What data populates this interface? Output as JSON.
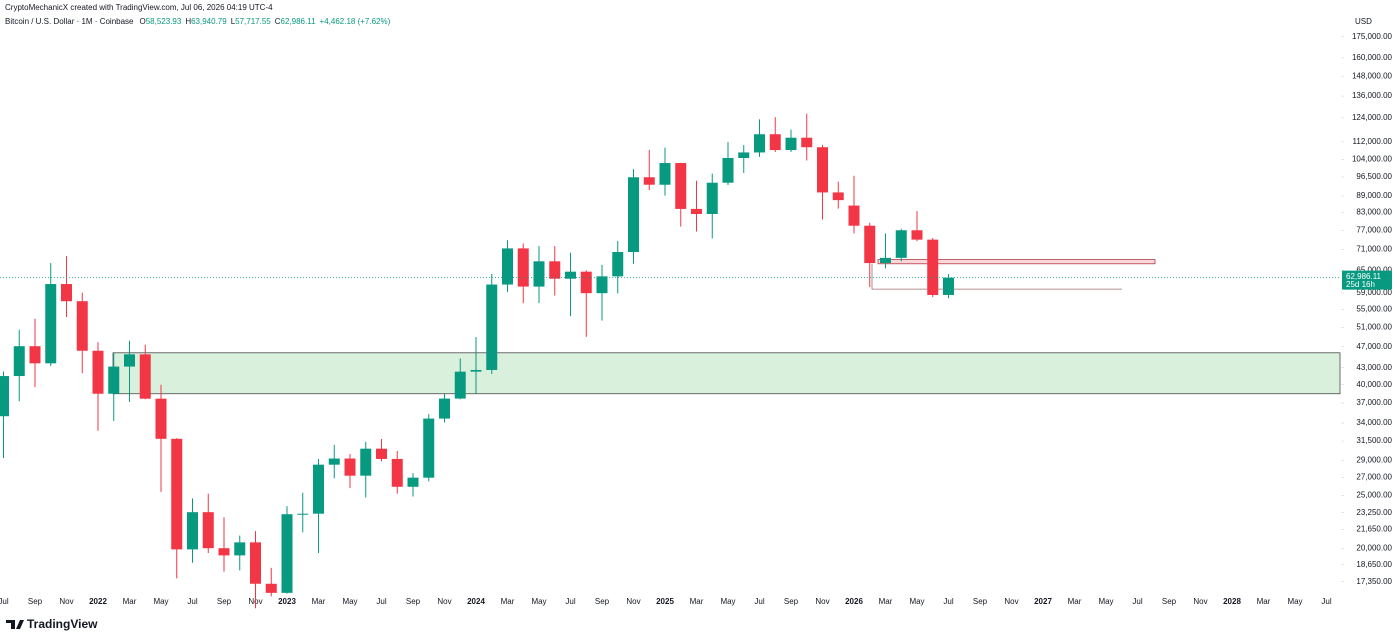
{
  "header": {
    "credit": "CryptoMechanicX created with TradingView.com, Jul 06, 2026 04:19 UTC-4",
    "symbol": "Bitcoin / U.S. Dollar · 1M · Coinbase",
    "legend": [
      {
        "key": "O",
        "value": "58,523.93"
      },
      {
        "key": "H",
        "value": "63,940.79"
      },
      {
        "key": "L",
        "value": "57,717.55"
      },
      {
        "key": "C",
        "value": "62,986.11"
      }
    ],
    "change": "+4,462.18 (+7.62%)"
  },
  "brand": "TradingView",
  "chart_data": {
    "type": "candlestick",
    "currency": "USD",
    "log_scale": true,
    "grid": false,
    "up_color": "#089981",
    "down_color": "#f23645",
    "categories": [
      "Jul",
      null,
      "Sep",
      null,
      "Nov",
      null,
      "2022",
      null,
      "Mar",
      null,
      "May",
      null,
      "Jul",
      null,
      "Sep",
      null,
      "Nov",
      null,
      "2023",
      null,
      "Mar",
      null,
      "May",
      null,
      "Jul",
      null,
      "Sep",
      null,
      "Nov",
      null,
      "2024",
      null,
      "Mar",
      null,
      "May",
      null,
      "Jul",
      null,
      "Sep",
      null,
      "Nov",
      null,
      "2025",
      null,
      "Mar",
      null,
      "May",
      null,
      "Jul",
      null,
      "Sep",
      null,
      "Nov",
      null,
      "2026",
      null,
      "Mar",
      null,
      "May",
      null,
      "Jul",
      null,
      "Sep",
      null,
      "Nov",
      null,
      "2027",
      null,
      "Mar",
      null,
      "May",
      null,
      "Jul",
      null,
      "Sep",
      null,
      "Nov",
      null,
      "2028",
      null,
      "Mar",
      null,
      "May",
      null,
      "Jul"
    ],
    "open": [
      35000,
      41500,
      47100,
      43800,
      61300,
      57000,
      46200,
      38500,
      43200,
      45500,
      37700,
      31800,
      19900,
      23300,
      20000,
      19400,
      20500,
      17200,
      16550,
      23100,
      23150,
      28500,
      29250,
      27200,
      30500,
      29200,
      25950,
      26970,
      34650,
      37720,
      42280,
      42580,
      61170,
      71300,
      60640,
      67500,
      62700,
      64600,
      58970,
      63330,
      70215,
      96400,
      93400,
      102400,
      84300,
      82500,
      94200,
      104600,
      107100,
      115700,
      108200,
      114000,
      109500,
      90400,
      85500,
      78500,
      67000,
      68500,
      77000,
      74000,
      58523.93,
      null,
      null,
      null,
      null,
      null,
      null,
      null,
      null,
      null,
      null,
      null,
      null,
      null,
      null,
      null,
      null,
      null,
      null,
      null,
      null,
      null,
      null,
      null,
      null
    ],
    "high": [
      42300,
      50500,
      52900,
      67000,
      69000,
      59100,
      47900,
      45800,
      48200,
      47400,
      40000,
      31900,
      24700,
      25200,
      22800,
      21100,
      21500,
      18400,
      23900,
      25300,
      29200,
      31000,
      29800,
      31400,
      31800,
      30200,
      27500,
      35300,
      38450,
      44700,
      48970,
      64000,
      73800,
      72800,
      72000,
      72000,
      70000,
      65000,
      66500,
      73600,
      99800,
      108300,
      109300,
      102500,
      95000,
      97900,
      111900,
      110500,
      123200,
      124400,
      117900,
      126200,
      110600,
      94600,
      97000,
      79500,
      76000,
      77500,
      83500,
      74500,
      63940.79,
      null,
      null,
      null,
      null,
      null,
      null,
      null,
      null,
      null,
      null,
      null,
      null,
      null,
      null,
      null,
      null,
      null,
      null,
      null,
      null,
      null,
      null,
      null,
      null
    ],
    "low": [
      29300,
      37300,
      39600,
      43300,
      53300,
      42000,
      32900,
      34300,
      37200,
      37600,
      25400,
      17600,
      18800,
      19600,
      18100,
      18200,
      15500,
      16300,
      16500,
      21400,
      19600,
      26900,
      25800,
      24800,
      28900,
      25200,
      24900,
      26550,
      34100,
      37600,
      38550,
      41880,
      59300,
      56500,
      56550,
      58400,
      53500,
      49000,
      52500,
      58900,
      66800,
      91300,
      89200,
      78200,
      76600,
      74400,
      93300,
      98200,
      105100,
      107300,
      107300,
      103500,
      80600,
      84400,
      76000,
      60500,
      65500,
      67500,
      73500,
      58000,
      57717.55,
      null,
      null,
      null,
      null,
      null,
      null,
      null,
      null,
      null,
      null,
      null,
      null,
      null,
      null,
      null,
      null,
      null,
      null,
      null,
      null,
      null,
      null,
      null,
      null
    ],
    "close": [
      41500,
      47100,
      43800,
      61300,
      57000,
      46200,
      38500,
      43200,
      45500,
      37700,
      31800,
      19900,
      23300,
      20000,
      19400,
      20500,
      17200,
      16550,
      23100,
      23150,
      28500,
      29250,
      27200,
      30500,
      29200,
      25950,
      26970,
      34650,
      37720,
      42280,
      42580,
      61170,
      71300,
      60640,
      67500,
      62700,
      64600,
      58970,
      63330,
      70215,
      96400,
      93400,
      102400,
      84300,
      82500,
      94200,
      104600,
      107100,
      115700,
      108200,
      114000,
      109500,
      90400,
      87500,
      78500,
      67000,
      68500,
      77000,
      74000,
      58523.93,
      62986.11,
      null,
      null,
      null,
      null,
      null,
      null,
      null,
      null,
      null,
      null,
      null,
      null,
      null,
      null,
      null,
      null,
      null,
      null,
      null,
      null,
      null,
      null,
      null,
      null
    ],
    "ylim": [
      16400,
      180000
    ],
    "yticks": [
      {
        "value": 175000,
        "label": "175,000.00"
      },
      {
        "value": 160000,
        "label": "160,000.00"
      },
      {
        "value": 148000,
        "label": "148,000.00"
      },
      {
        "value": 136000,
        "label": "136,000.00"
      },
      {
        "value": 124000,
        "label": "124,000.00"
      },
      {
        "value": 112000,
        "label": "112,000.00"
      },
      {
        "value": 104000,
        "label": "104,000.00"
      },
      {
        "value": 96500,
        "label": "96,500.00"
      },
      {
        "value": 89000,
        "label": "89,000.00"
      },
      {
        "value": 83000,
        "label": "83,000.00"
      },
      {
        "value": 77000,
        "label": "77,000.00"
      },
      {
        "value": 71000,
        "label": "71,000.00"
      },
      {
        "value": 65000,
        "label": "65,000.00"
      },
      {
        "value": 59000,
        "label": "59,000.00"
      },
      {
        "value": 55000,
        "label": "55,000.00"
      },
      {
        "value": 51000,
        "label": "51,000.00"
      },
      {
        "value": 47000,
        "label": "47,000.00"
      },
      {
        "value": 43000,
        "label": "43,000.00"
      },
      {
        "value": 40000,
        "label": "40,000.00"
      },
      {
        "value": 37000,
        "label": "37,000.00"
      },
      {
        "value": 34000,
        "label": "34,000.00"
      },
      {
        "value": 31500,
        "label": "31,500.00"
      },
      {
        "value": 29000,
        "label": "29,000.00"
      },
      {
        "value": 27000,
        "label": "27,000.00"
      },
      {
        "value": 25000,
        "label": "25,000.00"
      },
      {
        "value": 23250,
        "label": "23,250.00"
      },
      {
        "value": 21650,
        "label": "21,650.00"
      },
      {
        "value": 20000,
        "label": "20,000.00"
      },
      {
        "value": 18650,
        "label": "18,650.00"
      },
      {
        "value": 17350,
        "label": "17,350.00"
      }
    ],
    "last_price": {
      "value": 62986.11,
      "label": "62,986.11"
    },
    "countdown": "25d 16h",
    "zones": [
      {
        "low": 38500,
        "high": 45800,
        "color": "#d9f0dd",
        "border": "#4a4a4a"
      },
      {
        "low": 66800,
        "high": 68000,
        "color": "#fbd6da",
        "border": "#b33a46"
      }
    ],
    "level": 60000
  }
}
